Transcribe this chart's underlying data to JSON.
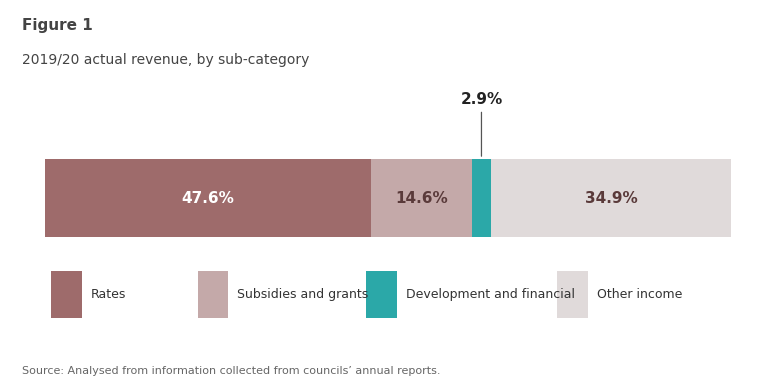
{
  "figure_label": "Figure 1",
  "title": "2019/20 actual revenue, by sub-category",
  "source": "Source: Analysed from information collected from councils’ annual reports.",
  "segments": [
    {
      "label": "Rates",
      "value": 47.6,
      "color": "#9e6b6b"
    },
    {
      "label": "Subsidies and grants",
      "value": 14.6,
      "color": "#c4a9a9"
    },
    {
      "label": "Development and financial",
      "value": 2.9,
      "color": "#2ba8a8"
    },
    {
      "label": "Other income",
      "value": 34.9,
      "color": "#e0dada"
    }
  ],
  "bar_text_colors": [
    "#ffffff",
    "#5a3a3a",
    "#ffffff",
    "#5a3a3a"
  ],
  "annotation_above": "2.9%",
  "background_color": "#ffffff",
  "box_facecolor": "#ffffff",
  "box_edgecolor": "#bbbbbb",
  "title_color": "#444444",
  "source_color": "#666666"
}
